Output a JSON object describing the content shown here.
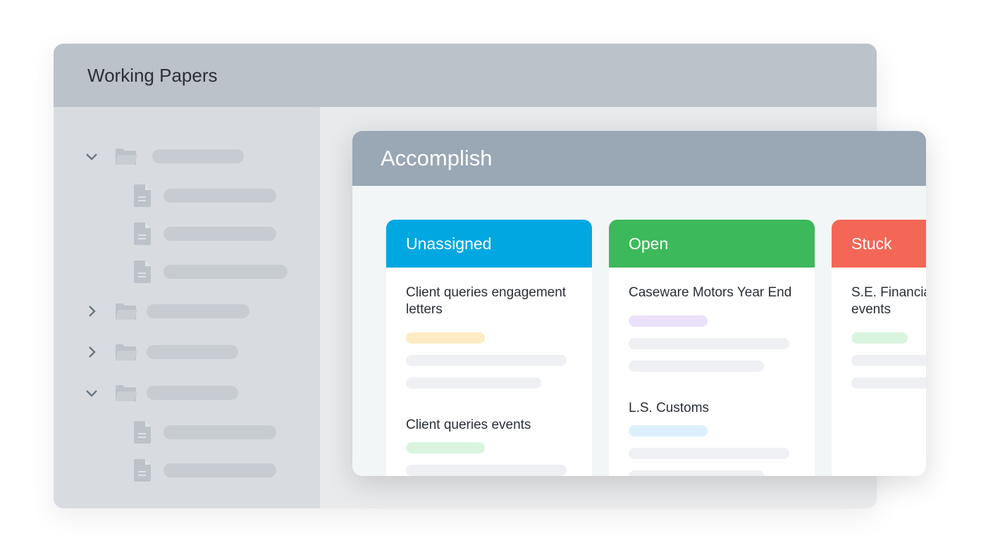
{
  "back_window": {
    "title": "Working Papers"
  },
  "front_window": {
    "title": "Accomplish"
  },
  "columns": [
    {
      "label": "Unassigned",
      "color": "#00a7e1",
      "cards": [
        {
          "title": "Client queries engagement letters",
          "tag_color": "#ffecc4"
        },
        {
          "title": "Client queries events",
          "tag_color": "#d9f5e0"
        }
      ]
    },
    {
      "label": "Open",
      "color": "#3cb95a",
      "cards": [
        {
          "title": "Caseware Motors Year End",
          "tag_color": "#ebe0fa"
        },
        {
          "title": "L.S. Customs",
          "tag_color": "#dcf0fb"
        }
      ]
    },
    {
      "label": "Stuck",
      "color": "#f46756",
      "cards": [
        {
          "title": "S.E. Financial events",
          "tag_color": "#d9f5e0"
        }
      ]
    }
  ],
  "tree": [
    {
      "type": "folder",
      "expanded": true
    },
    {
      "type": "file"
    },
    {
      "type": "file"
    },
    {
      "type": "file"
    },
    {
      "type": "folder",
      "expanded": false
    },
    {
      "type": "folder",
      "expanded": false
    },
    {
      "type": "folder",
      "expanded": true
    },
    {
      "type": "file"
    },
    {
      "type": "file"
    }
  ]
}
